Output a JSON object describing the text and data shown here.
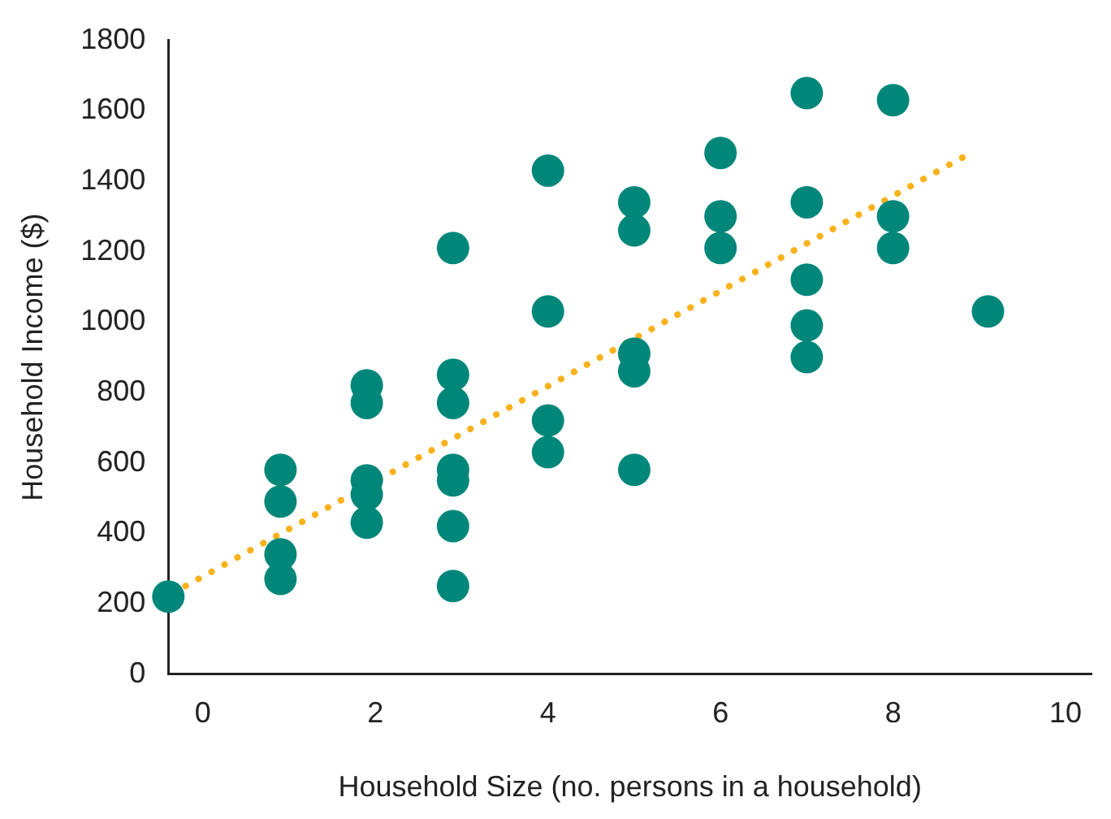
{
  "chart_data": {
    "type": "scatter",
    "xlabel": "Household Size (no. persons in a household)",
    "ylabel": "Household Income ($)",
    "xlim": [
      -0.4,
      10.3
    ],
    "ylim": [
      0,
      1800
    ],
    "xticks": [
      0,
      2,
      4,
      6,
      8,
      10
    ],
    "yticks": [
      0,
      200,
      400,
      600,
      800,
      1000,
      1200,
      1400,
      1600,
      1800
    ],
    "grid": false,
    "legend": false,
    "marker": "circle",
    "series": [
      {
        "color": "#00877a",
        "x": [
          -0.4,
          0.9,
          0.9,
          0.9,
          0.9,
          1.9,
          1.9,
          1.9,
          1.9,
          1.9,
          2.9,
          2.9,
          2.9,
          2.9,
          2.9,
          2.9,
          2.9,
          4.0,
          4.0,
          4.0,
          4.0,
          5.0,
          5.0,
          5.0,
          5.0,
          5.0,
          6.0,
          6.0,
          6.0,
          7.0,
          7.0,
          7.0,
          7.0,
          7.0,
          8.0,
          8.0,
          8.0,
          9.1
        ],
        "values": [
          220,
          580,
          490,
          340,
          270,
          820,
          770,
          550,
          510,
          430,
          1210,
          850,
          770,
          580,
          550,
          420,
          250,
          1430,
          1030,
          720,
          630,
          1340,
          1260,
          910,
          860,
          580,
          1480,
          1300,
          1210,
          1650,
          1340,
          1120,
          990,
          900,
          1630,
          1300,
          1210,
          1030
        ]
      },
      {
        "type": "line",
        "color": "#f9b21b",
        "line_style": "dotted",
        "marker": "none",
        "x": [
          -0.2,
          8.9
        ],
        "values": [
          250,
          1480
        ]
      }
    ]
  }
}
